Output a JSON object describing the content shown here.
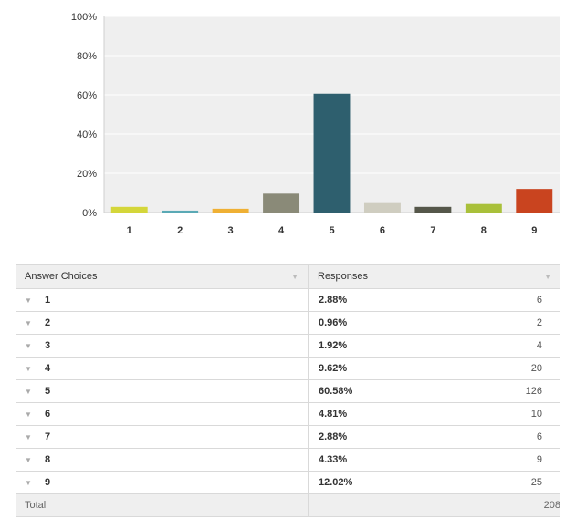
{
  "chart_data": {
    "type": "bar",
    "categories": [
      "1",
      "2",
      "3",
      "4",
      "5",
      "6",
      "7",
      "8",
      "9"
    ],
    "values": [
      2.88,
      0.96,
      1.92,
      9.62,
      60.58,
      4.81,
      2.88,
      4.33,
      12.02
    ],
    "colors": [
      "#d4d63a",
      "#5aa9b5",
      "#efb034",
      "#8a8a78",
      "#2e5f6e",
      "#cfcdc0",
      "#55574a",
      "#a9c03a",
      "#c9441f"
    ],
    "yticks": [
      "0%",
      "20%",
      "40%",
      "60%",
      "80%",
      "100%"
    ],
    "ylim": [
      0,
      100
    ],
    "grid": true,
    "background": "#efefef"
  },
  "table": {
    "headers": {
      "choices": "Answer Choices",
      "responses": "Responses"
    },
    "rows": [
      {
        "choice": "1",
        "percent": "2.88%",
        "count": "6"
      },
      {
        "choice": "2",
        "percent": "0.96%",
        "count": "2"
      },
      {
        "choice": "3",
        "percent": "1.92%",
        "count": "4"
      },
      {
        "choice": "4",
        "percent": "9.62%",
        "count": "20"
      },
      {
        "choice": "5",
        "percent": "60.58%",
        "count": "126"
      },
      {
        "choice": "6",
        "percent": "4.81%",
        "count": "10"
      },
      {
        "choice": "7",
        "percent": "2.88%",
        "count": "6"
      },
      {
        "choice": "8",
        "percent": "4.33%",
        "count": "9"
      },
      {
        "choice": "9",
        "percent": "12.02%",
        "count": "25"
      }
    ],
    "total_label": "Total",
    "total_count": "208"
  }
}
